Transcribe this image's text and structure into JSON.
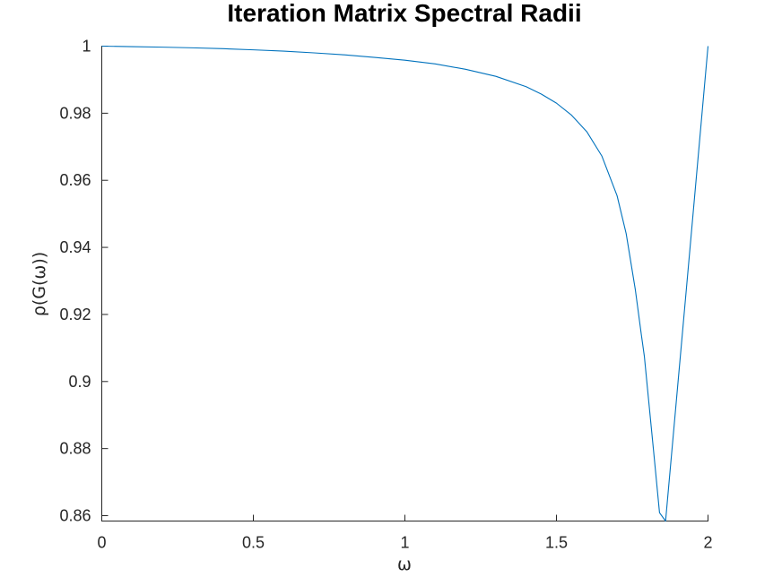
{
  "chart_data": {
    "type": "line",
    "title": "Iteration Matrix Spectral Radii",
    "xlabel": "ω",
    "ylabel": "ρ(G(ω))",
    "xlim": [
      0,
      2
    ],
    "ylim": [
      0.8584,
      1.0
    ],
    "grid": false,
    "legend": "none",
    "x_ticks": [
      {
        "value": 0,
        "label": "0"
      },
      {
        "value": 0.5,
        "label": "0.5"
      },
      {
        "value": 1,
        "label": "1"
      },
      {
        "value": 1.5,
        "label": "1.5"
      },
      {
        "value": 2,
        "label": "2"
      }
    ],
    "y_ticks": [
      {
        "value": 0.86,
        "label": "0.86"
      },
      {
        "value": 0.88,
        "label": "0.88"
      },
      {
        "value": 0.9,
        "label": "0.9"
      },
      {
        "value": 0.92,
        "label": "0.92"
      },
      {
        "value": 0.94,
        "label": "0.94"
      },
      {
        "value": 0.96,
        "label": "0.96"
      },
      {
        "value": 0.98,
        "label": "0.98"
      },
      {
        "value": 1,
        "label": "1"
      }
    ],
    "series": [
      {
        "color": "#0072bd",
        "points": [
          [
            0.0,
            1.0
          ],
          [
            0.1,
            0.99985
          ],
          [
            0.2,
            0.9997
          ],
          [
            0.3,
            0.9995
          ],
          [
            0.4,
            0.99925
          ],
          [
            0.5,
            0.9989
          ],
          [
            0.6,
            0.9985
          ],
          [
            0.7,
            0.998
          ],
          [
            0.8,
            0.9974
          ],
          [
            0.9,
            0.99665
          ],
          [
            1.0,
            0.9958
          ],
          [
            1.1,
            0.9947
          ],
          [
            1.2,
            0.9931
          ],
          [
            1.3,
            0.991
          ],
          [
            1.4,
            0.9879
          ],
          [
            1.45,
            0.9857
          ],
          [
            1.5,
            0.983
          ],
          [
            1.55,
            0.9794
          ],
          [
            1.6,
            0.9745
          ],
          [
            1.65,
            0.9672
          ],
          [
            1.7,
            0.9554
          ],
          [
            1.73,
            0.9441
          ],
          [
            1.76,
            0.9275
          ],
          [
            1.78,
            0.914
          ],
          [
            1.79,
            0.9075
          ],
          [
            1.8,
            0.8982
          ],
          [
            1.82,
            0.8797
          ],
          [
            1.84,
            0.8609
          ],
          [
            1.86,
            0.8584
          ],
          [
            1.93,
            0.929
          ],
          [
            2.0,
            1.0
          ]
        ]
      }
    ]
  }
}
